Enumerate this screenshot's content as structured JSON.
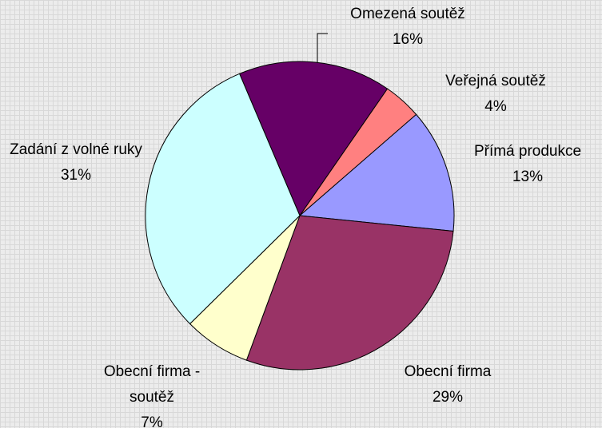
{
  "chart_data": {
    "type": "pie",
    "categories": [
      "Omezená soutěž",
      "Veřejná soutěž",
      "Přímá produkce",
      "Obecní firma",
      "Obecní firma - soutěž",
      "Zadání z volné ruky"
    ],
    "values": [
      16,
      4,
      13,
      29,
      7,
      31
    ],
    "value_labels": [
      "16%",
      "4%",
      "13%",
      "29%",
      "7%",
      "31%"
    ],
    "colors": [
      "#660066",
      "#ff8080",
      "#9999ff",
      "#993366",
      "#ffffcc",
      "#ccffff"
    ]
  }
}
